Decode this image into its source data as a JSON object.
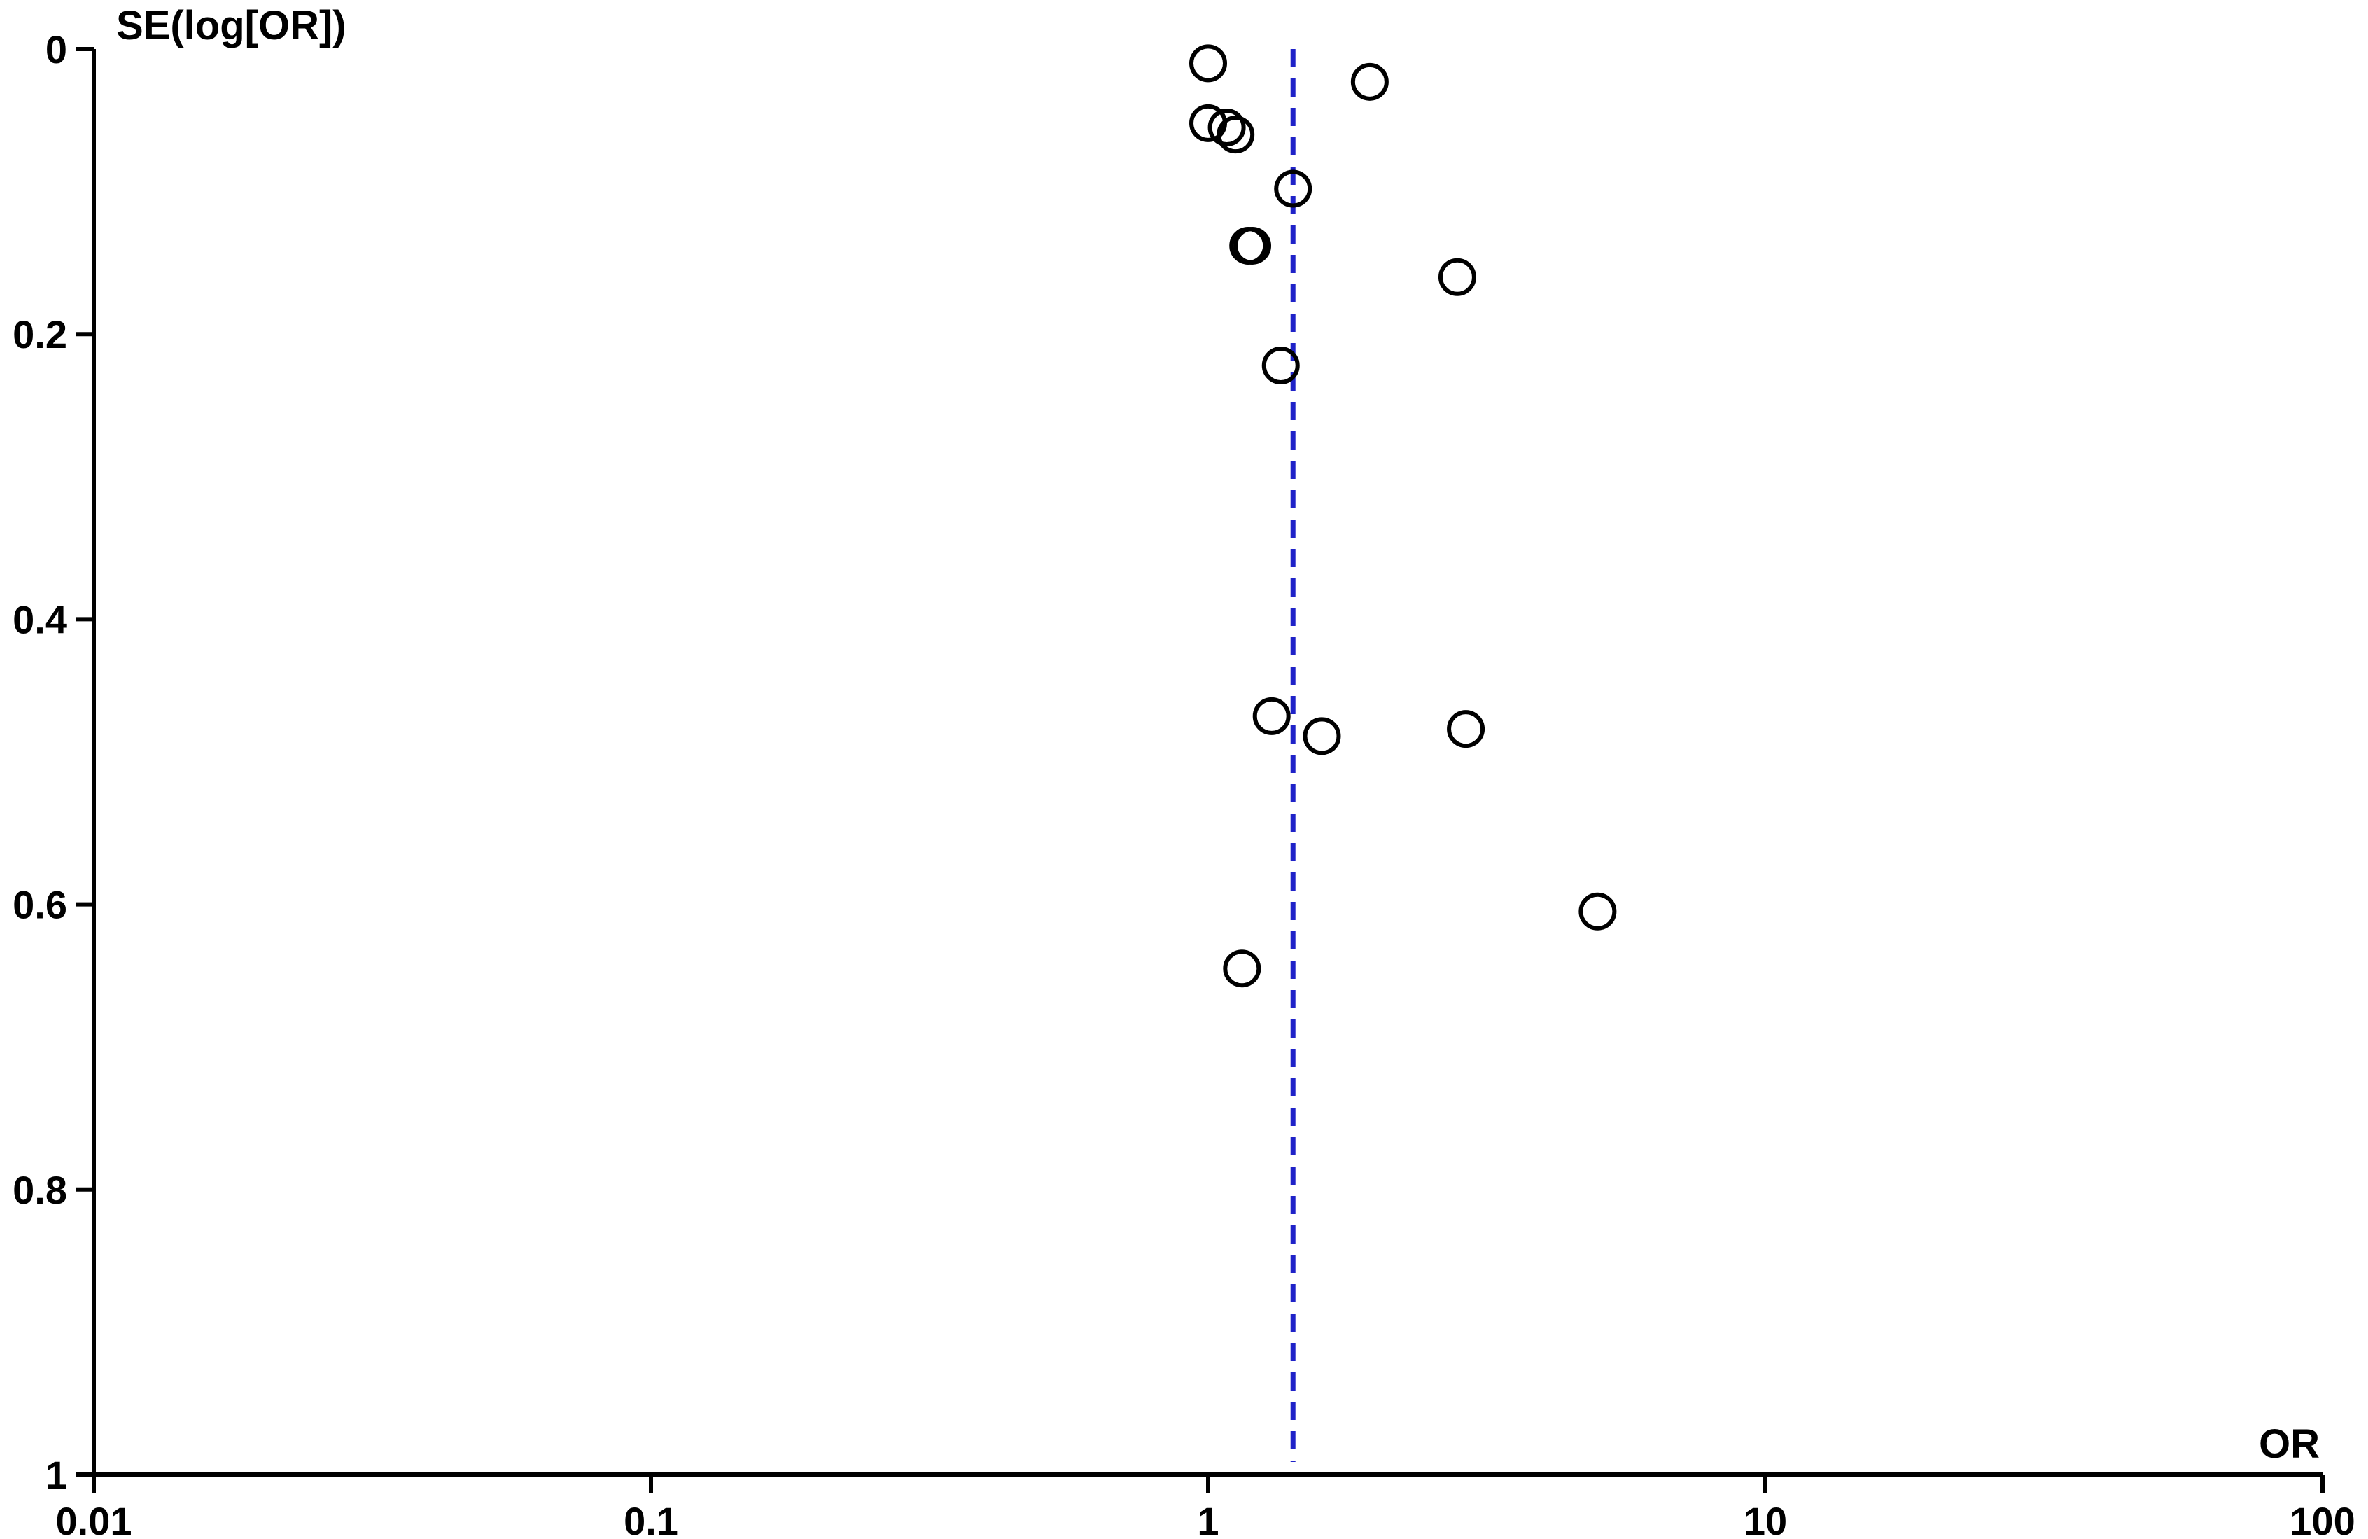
{
  "chart_data": {
    "type": "scatter",
    "subtype": "funnel-plot",
    "title": "",
    "xlabel": "OR",
    "ylabel": "SE(log[OR])",
    "x_scale": "log",
    "y_inverted": true,
    "xlim": [
      0.01,
      100
    ],
    "ylim": [
      0,
      1
    ],
    "x_ticks": [
      0.01,
      0.1,
      1,
      10,
      100
    ],
    "x_tick_labels": [
      "0.01",
      "0.1",
      "1",
      "10",
      "100"
    ],
    "y_ticks": [
      0,
      0.2,
      0.4,
      0.6,
      0.8,
      1
    ],
    "y_tick_labels": [
      "0",
      "0.2",
      "0.4",
      "0.6",
      "0.8",
      "1"
    ],
    "grid": false,
    "legend": "none",
    "pooled_estimate": {
      "x": 1.42,
      "style": "dashed",
      "color": "#1f22c8"
    },
    "series": [
      {
        "marker": "open-circle",
        "color": "#000000",
        "points": [
          {
            "x": 1.0,
            "y": 0.01
          },
          {
            "x": 1.95,
            "y": 0.023
          },
          {
            "x": 1.0,
            "y": 0.052
          },
          {
            "x": 1.08,
            "y": 0.055
          },
          {
            "x": 1.12,
            "y": 0.06
          },
          {
            "x": 1.42,
            "y": 0.098
          },
          {
            "x": 1.18,
            "y": 0.138
          },
          {
            "x": 1.2,
            "y": 0.138
          },
          {
            "x": 2.8,
            "y": 0.16
          },
          {
            "x": 1.35,
            "y": 0.222
          },
          {
            "x": 1.3,
            "y": 0.468
          },
          {
            "x": 1.6,
            "y": 0.482
          },
          {
            "x": 2.9,
            "y": 0.477
          },
          {
            "x": 5.0,
            "y": 0.605
          },
          {
            "x": 1.15,
            "y": 0.645
          }
        ]
      }
    ]
  }
}
